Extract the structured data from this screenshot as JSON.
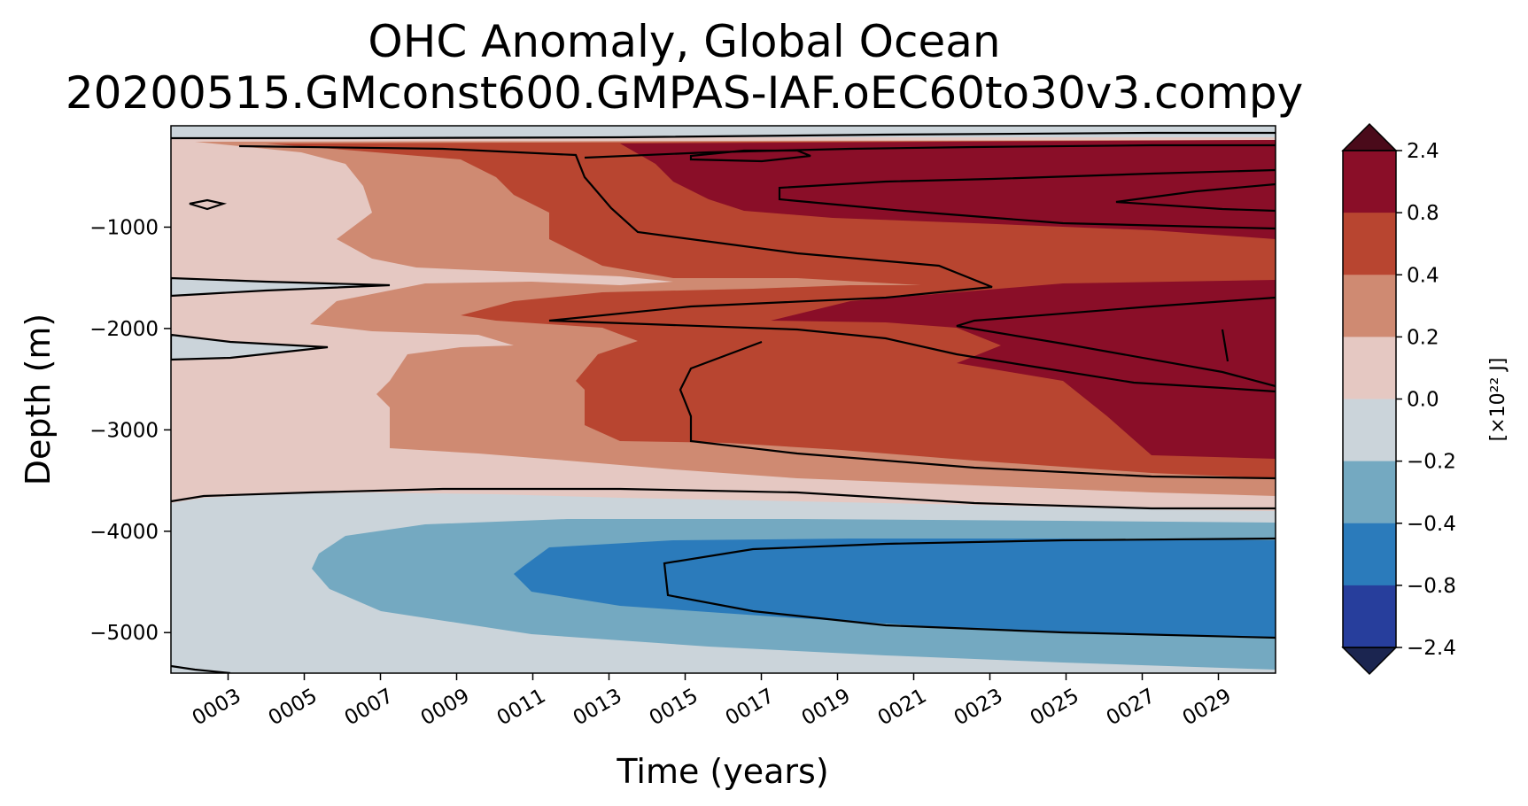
{
  "chart_data": {
    "type": "heatmap",
    "title_lines": [
      "OHC Anomaly, Global Ocean",
      "20200515.GMconst600.GMPAS-IAF.oEC60to30v3.compy"
    ],
    "xlabel": "Time (years)",
    "ylabel": "Depth (m)",
    "x_ticks": [
      "0003",
      "0005",
      "0007",
      "0009",
      "0011",
      "0013",
      "0015",
      "0017",
      "0019",
      "0021",
      "0023",
      "0025",
      "0027",
      "0029"
    ],
    "x_tick_years": [
      3,
      5,
      7,
      9,
      11,
      13,
      15,
      17,
      19,
      21,
      23,
      25,
      27,
      29
    ],
    "xlim": [
      1.5,
      30.5
    ],
    "y_ticks": [
      "−1000",
      "−2000",
      "−3000",
      "−4000",
      "−5000"
    ],
    "y_tick_values": [
      -1000,
      -2000,
      -3000,
      -4000,
      -5000
    ],
    "ylim": [
      -5400,
      0
    ],
    "colorbar": {
      "label": "[×10²² J]",
      "levels": [
        "2.4",
        "0.8",
        "0.4",
        "0.2",
        "0.0",
        "−0.2",
        "−0.4",
        "−0.8",
        "−2.4"
      ],
      "colors": [
        "#8a0e28",
        "#b84530",
        "#cf8a72",
        "#e5c8c2",
        "#cbd4da",
        "#74a9c1",
        "#2b7bbb",
        "#273e9c"
      ],
      "extend_max_color": "#4a0a1a",
      "extend_min_color": "#1b2550"
    },
    "bands": [
      {
        "name": "band-lt-neg02",
        "level": "−0.2 to 0.0"
      },
      {
        "name": "band-0-02",
        "level": "0.0 to 0.2"
      },
      {
        "name": "band-02-04",
        "level": "0.2 to 0.4"
      },
      {
        "name": "band-04-08",
        "level": "0.4 to 0.8"
      },
      {
        "name": "band-gt-08",
        "level": "above 0.8"
      },
      {
        "name": "band-neg04-neg02",
        "level": "−0.4 to −0.2"
      },
      {
        "name": "band-neg08-neg04",
        "level": "−0.8 to −0.4"
      }
    ]
  }
}
